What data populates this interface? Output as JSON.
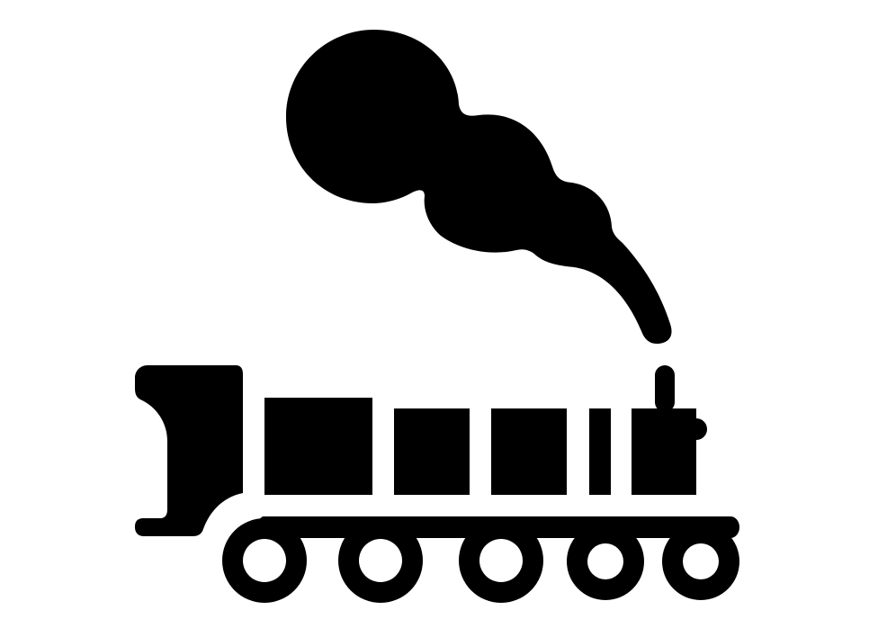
{
  "icon": {
    "name": "steam-locomotive-icon",
    "fill": "#000000",
    "background": "#ffffff"
  }
}
